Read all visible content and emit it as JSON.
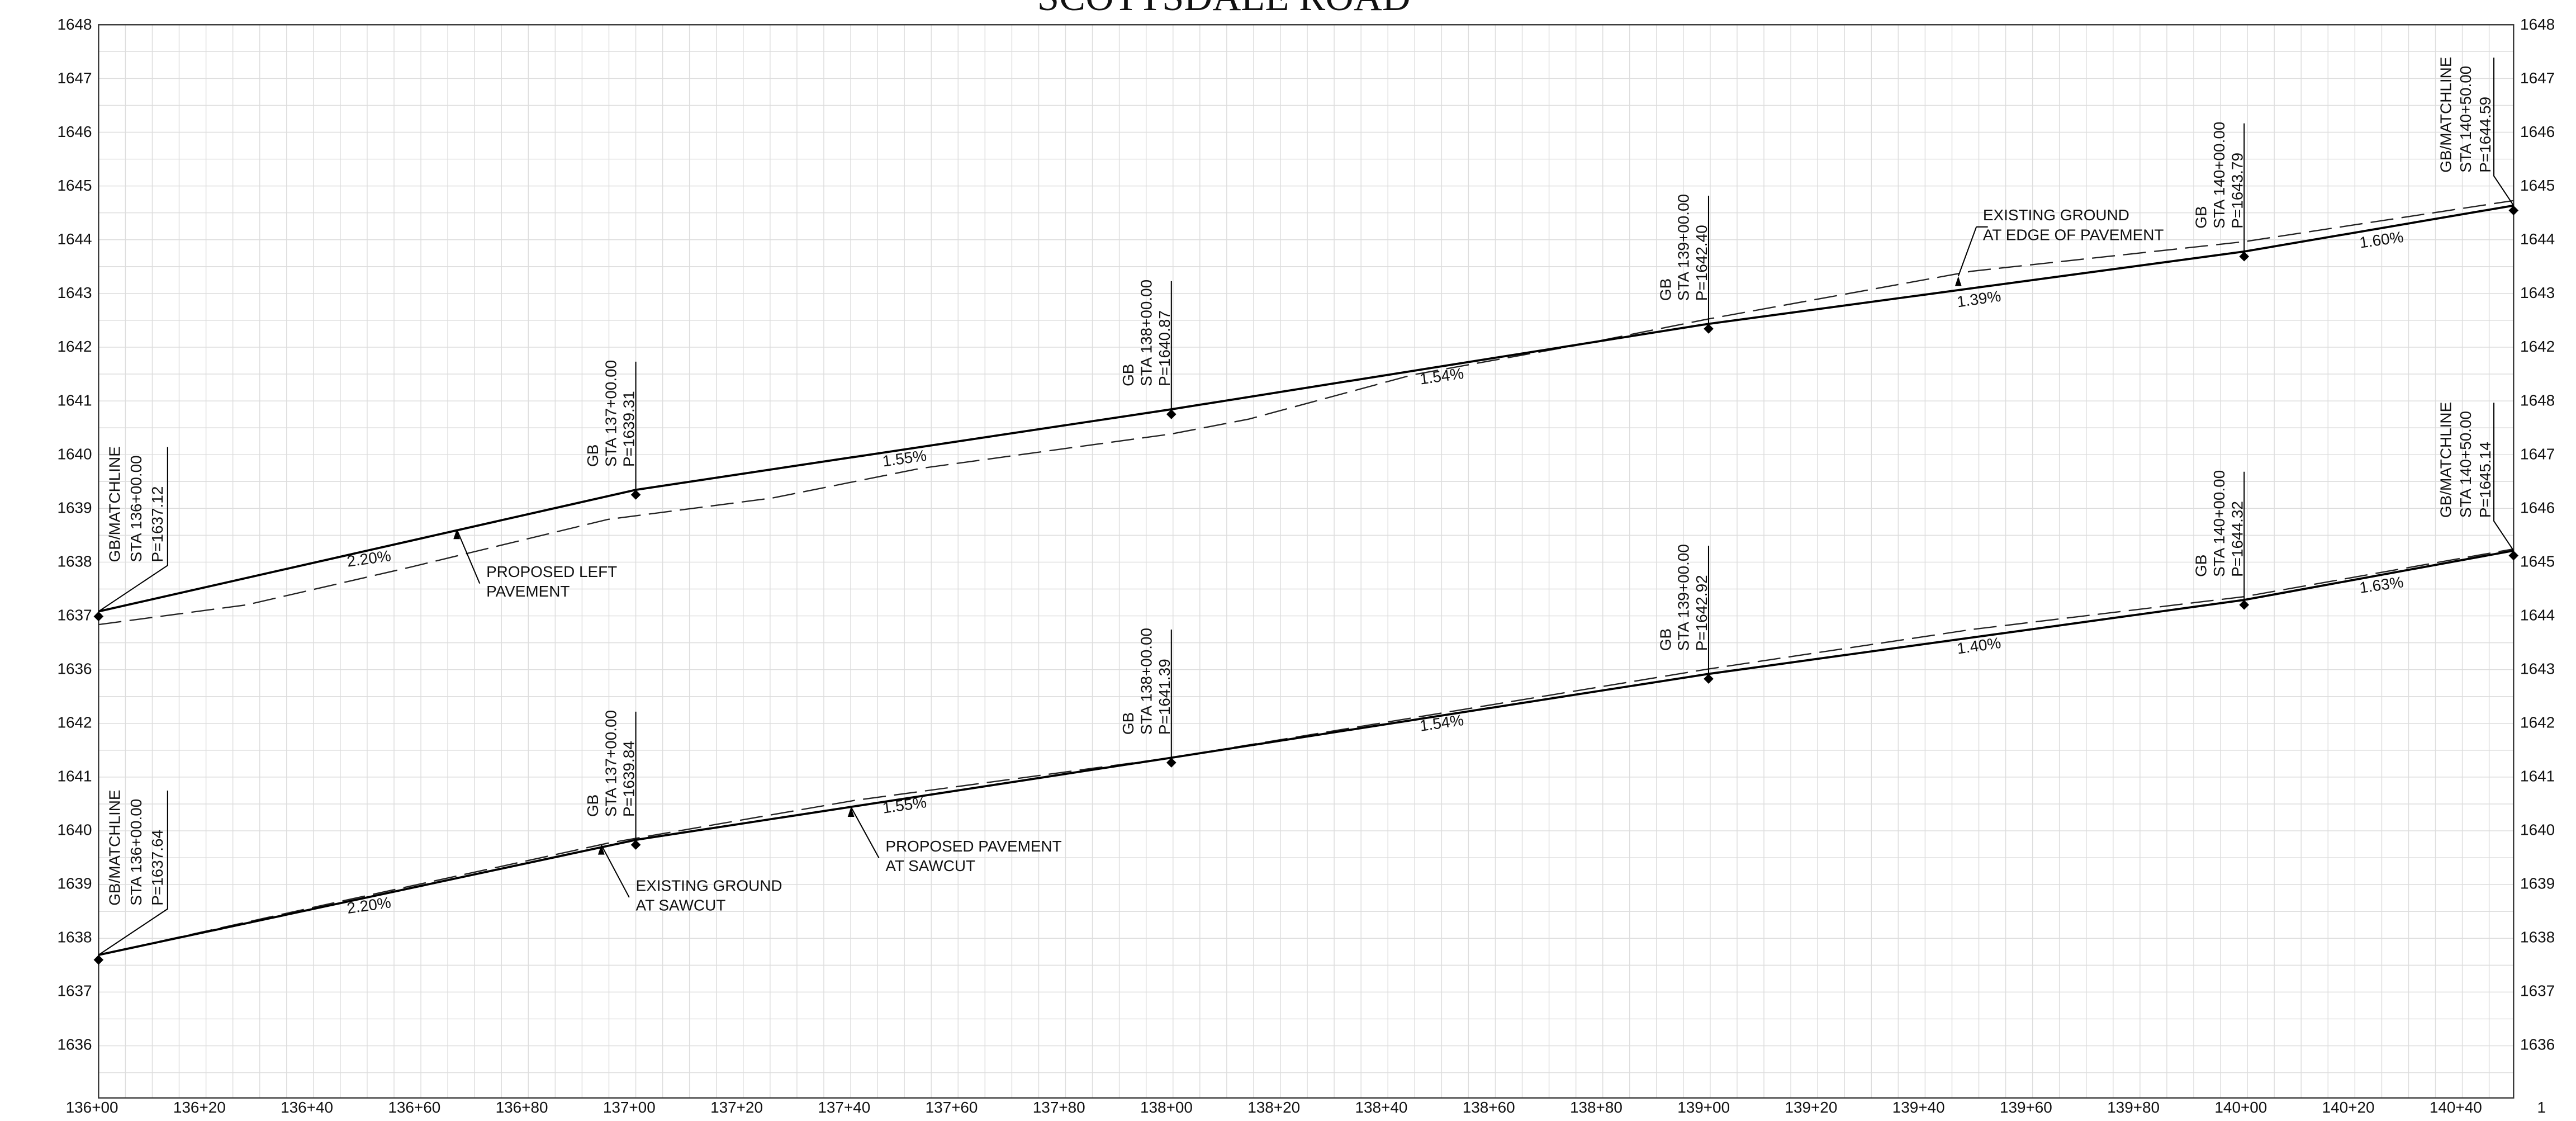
{
  "title": "SCOTTSDALE ROAD",
  "left_axis_labels": [
    "1648",
    "1647",
    "1646",
    "1645",
    "1644",
    "1643",
    "1642",
    "1641",
    "1640",
    "1639",
    "1638",
    "1637",
    "1636",
    "1642",
    "1641",
    "1640",
    "1639",
    "1638",
    "1637",
    "1636"
  ],
  "right_axis_labels": [
    "1648",
    "1647",
    "1646",
    "1645",
    "1644",
    "1643",
    "1642",
    "1648",
    "1647",
    "1646",
    "1645",
    "1644",
    "1643",
    "1642",
    "1641",
    "1640",
    "1639",
    "1638",
    "1637",
    "1636"
  ],
  "station_labels": [
    "136+00",
    "136+20",
    "136+40",
    "136+60",
    "136+80",
    "137+00",
    "137+20",
    "137+40",
    "137+60",
    "137+80",
    "138+00",
    "138+20",
    "138+40",
    "138+60",
    "138+80",
    "139+00",
    "139+20",
    "139+40",
    "139+60",
    "139+80",
    "140+00",
    "140+20",
    "140+40",
    "1"
  ],
  "upper_profile": {
    "stations": [
      {
        "lines": [
          "GB/MATCHLINE",
          "STA 136+00.00",
          "P=1637.12"
        ]
      },
      {
        "lines": [
          "GB",
          "STA 137+00.00",
          "P=1639.31"
        ]
      },
      {
        "lines": [
          "GB",
          "STA 138+00.00",
          "P=1640.87"
        ]
      },
      {
        "lines": [
          "GB",
          "STA 139+00.00",
          "P=1642.40"
        ]
      },
      {
        "lines": [
          "GB",
          "STA 140+00.00",
          "P=1643.79"
        ]
      },
      {
        "lines": [
          "GB/MATCHLINE",
          "STA 140+50.00",
          "P=1644.59"
        ]
      }
    ],
    "grades": [
      "2.20%",
      "1.55%",
      "1.54%",
      "1.39%",
      "1.60%"
    ]
  },
  "lower_profile": {
    "stations": [
      {
        "lines": [
          "GB/MATCHLINE",
          "STA 136+00.00",
          "P=1637.64"
        ]
      },
      {
        "lines": [
          "GB",
          "STA 137+00.00",
          "P=1639.84"
        ]
      },
      {
        "lines": [
          "GB",
          "STA 138+00.00",
          "P=1641.39"
        ]
      },
      {
        "lines": [
          "GB",
          "STA 139+00.00",
          "P=1642.92"
        ]
      },
      {
        "lines": [
          "GB",
          "STA 140+00.00",
          "P=1644.32"
        ]
      },
      {
        "lines": [
          "GB/MATCHLINE",
          "STA 140+50.00",
          "P=1645.14"
        ]
      }
    ],
    "grades": [
      "2.20%",
      "1.55%",
      "1.54%",
      "1.40%",
      "1.63%"
    ]
  },
  "callouts": [
    {
      "lines": [
        "PROPOSED LEFT",
        "PAVEMENT"
      ]
    },
    {
      "lines": [
        "EXISTING GROUND",
        "AT EDGE OF PAVEMENT"
      ]
    },
    {
      "lines": [
        "EXISTING GROUND",
        "AT SAWCUT"
      ]
    },
    {
      "lines": [
        "PROPOSED PAVEMENT",
        "AT SAWCUT"
      ]
    }
  ]
}
